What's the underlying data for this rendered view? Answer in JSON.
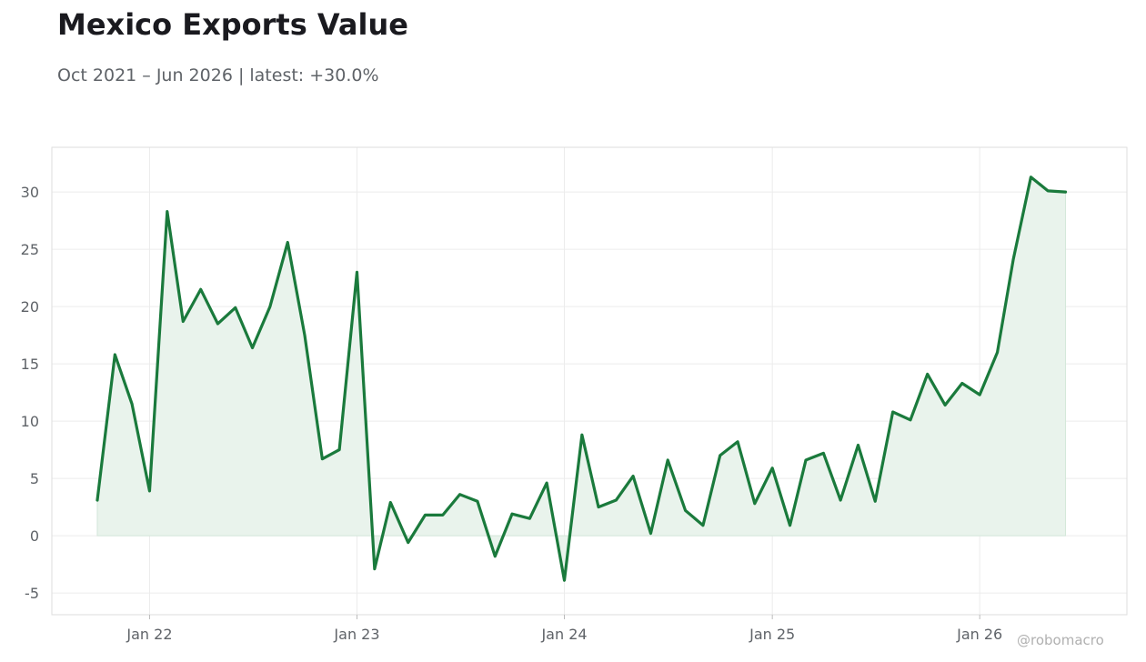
{
  "title": "Mexico Exports Value",
  "subtitle": "Oct 2021 – Jun 2026 | latest: +30.0%",
  "watermark": "@robomacro",
  "colors": {
    "line": "#1a7a3c",
    "fill": "#e9f3ec",
    "grid": "#ececec",
    "frame": "#dedede",
    "text": "#5f6368"
  },
  "chart_data": {
    "type": "area",
    "title": "Mexico Exports Value",
    "subtitle": "Oct 2021 – Jun 2026 | latest: +30.0%",
    "xlabel": "",
    "ylabel": "",
    "ylim": [
      -6.9,
      33.9
    ],
    "xlim": [
      "2021-07-13",
      "2026-09-17"
    ],
    "grid": true,
    "x_ticks": [
      {
        "date": "2022-01",
        "label": "Jan 22"
      },
      {
        "date": "2023-01",
        "label": "Jan 23"
      },
      {
        "date": "2024-01",
        "label": "Jan 24"
      },
      {
        "date": "2025-01",
        "label": "Jan 25"
      },
      {
        "date": "2026-01",
        "label": "Jan 26"
      }
    ],
    "y_ticks": [
      -5,
      0,
      5,
      10,
      15,
      20,
      25,
      30
    ],
    "series": [
      {
        "points": [
          [
            "2021-10",
            3.1
          ],
          [
            "2021-11",
            15.8
          ],
          [
            "2021-12",
            11.5
          ],
          [
            "2022-01",
            3.9
          ],
          [
            "2022-02",
            28.3
          ],
          [
            "2022-03",
            18.7
          ],
          [
            "2022-04",
            21.5
          ],
          [
            "2022-05",
            18.5
          ],
          [
            "2022-06",
            19.9
          ],
          [
            "2022-07",
            16.4
          ],
          [
            "2022-08",
            20.0
          ],
          [
            "2022-09",
            25.6
          ],
          [
            "2022-10",
            17.5
          ],
          [
            "2022-11",
            6.7
          ],
          [
            "2022-12",
            7.5
          ],
          [
            "2023-01",
            23.0
          ],
          [
            "2023-02",
            -2.9
          ],
          [
            "2023-03",
            2.9
          ],
          [
            "2023-04",
            -0.6
          ],
          [
            "2023-05",
            1.8
          ],
          [
            "2023-06",
            1.8
          ],
          [
            "2023-07",
            3.6
          ],
          [
            "2023-08",
            3.0
          ],
          [
            "2023-09",
            -1.8
          ],
          [
            "2023-10",
            1.9
          ],
          [
            "2023-11",
            1.5
          ],
          [
            "2023-12",
            4.6
          ],
          [
            "2024-01",
            -3.9
          ],
          [
            "2024-02",
            8.8
          ],
          [
            "2024-03",
            2.5
          ],
          [
            "2024-04",
            3.1
          ],
          [
            "2024-05",
            5.2
          ],
          [
            "2024-06",
            0.2
          ],
          [
            "2024-07",
            6.6
          ],
          [
            "2024-08",
            2.2
          ],
          [
            "2024-09",
            0.9
          ],
          [
            "2024-10",
            7.0
          ],
          [
            "2024-11",
            8.2
          ],
          [
            "2024-12",
            2.8
          ],
          [
            "2025-01",
            5.9
          ],
          [
            "2025-02",
            0.9
          ],
          [
            "2025-03",
            6.6
          ],
          [
            "2025-04",
            7.2
          ],
          [
            "2025-05",
            3.1
          ],
          [
            "2025-06",
            7.9
          ],
          [
            "2025-07",
            3.0
          ],
          [
            "2025-08",
            10.8
          ],
          [
            "2025-09",
            10.1
          ],
          [
            "2025-10",
            14.1
          ],
          [
            "2025-11",
            11.4
          ],
          [
            "2025-12",
            13.3
          ],
          [
            "2026-01",
            12.3
          ],
          [
            "2026-02",
            16.0
          ],
          [
            "2026-03",
            24.1
          ],
          [
            "2026-04",
            31.3
          ],
          [
            "2026-05",
            30.1
          ],
          [
            "2026-06",
            30.0
          ]
        ]
      }
    ]
  }
}
